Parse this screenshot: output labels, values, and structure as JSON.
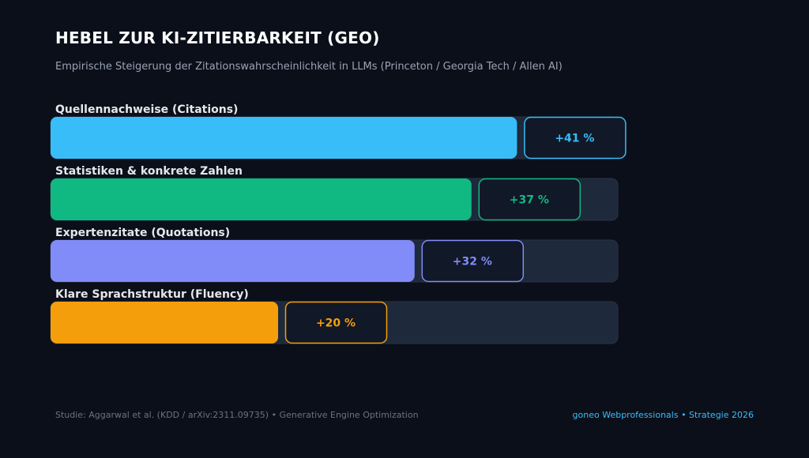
{
  "header": {
    "title": "HEBEL ZUR KI-ZITIERBARKEIT (GEO)",
    "subtitle": "Empirische Steigerung der Zitationswahrscheinlichkeit in LLMs (Princeton / Georgia Tech / Allen AI)"
  },
  "chart_data": {
    "type": "bar",
    "orientation": "horizontal",
    "categories": [
      "Quellennachweise (Citations)",
      "Statistiken & konkrete Zahlen",
      "Expertenzitate (Quotations)",
      "Klare Sprachstruktur (Fluency)"
    ],
    "values": [
      41,
      37,
      32,
      20
    ],
    "value_labels": [
      "+41 %",
      "+37 %",
      "+32 %",
      "+20 %"
    ],
    "colors": [
      "#38bdf8",
      "#10b981",
      "#818cf8",
      "#f59e0b"
    ],
    "xlim": [
      0,
      50
    ],
    "title": "HEBEL ZUR KI-ZITIERBARKEIT (GEO)",
    "xlabel": "",
    "ylabel": "",
    "grid": false,
    "legend": "none"
  },
  "footer": {
    "source": "Studie: Aggarwal et al. (KDD / arXiv:2311.09735) • Generative Engine Optimization",
    "brand": "goneo Webprofessionals • Strategie 2026"
  },
  "colors": {
    "background": "#0b0f1a",
    "track": "#1e293b",
    "badge": "#111827",
    "label": "#e5e7eb"
  }
}
